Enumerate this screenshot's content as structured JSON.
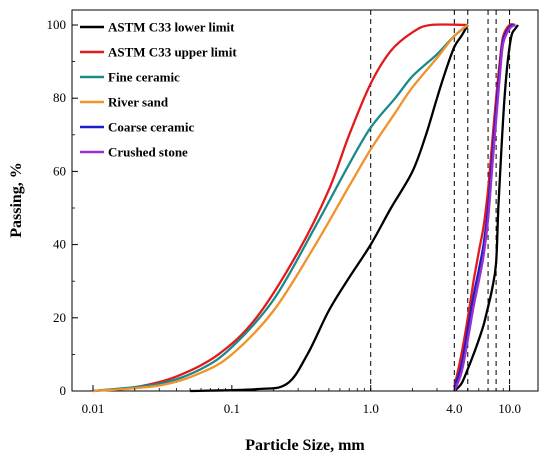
{
  "chart_data": {
    "type": "line",
    "xlabel": "Particle Size, mm",
    "ylabel": "Passing, %",
    "x_scale": "log",
    "ylim": [
      0,
      100
    ],
    "x_ticks": [
      "0.01",
      "0.1",
      "1.0",
      "4.0",
      "10.0"
    ],
    "y_ticks": [
      "0",
      "20",
      "40",
      "60",
      "80",
      "100"
    ],
    "grid": false,
    "legend_position": "top-left",
    "reference_lines_x": [
      "1.0",
      "4.0",
      "5.0",
      "7",
      "8",
      "10"
    ],
    "series": [
      {
        "name": "ASTM C33 lower limit",
        "color": "#000000",
        "curves": [
          [
            [
              0.05,
              0
            ],
            [
              0.15,
              0.5
            ],
            [
              0.25,
              2
            ],
            [
              0.35,
              10
            ],
            [
              0.5,
              22
            ],
            [
              0.7,
              31
            ],
            [
              1.0,
              40
            ],
            [
              1.4,
              50
            ],
            [
              2.0,
              60
            ],
            [
              2.5,
              70
            ],
            [
              3.0,
              80
            ],
            [
              3.5,
              88
            ],
            [
              4.0,
              94
            ],
            [
              4.5,
              97
            ],
            [
              5.0,
              100
            ]
          ],
          [
            [
              4.0,
              0
            ],
            [
              4.5,
              2
            ],
            [
              5.0,
              6
            ],
            [
              5.5,
              10
            ],
            [
              6.0,
              14
            ],
            [
              6.5,
              18
            ],
            [
              7.0,
              23
            ],
            [
              7.5,
              28
            ],
            [
              8.0,
              35
            ],
            [
              8.3,
              50
            ],
            [
              8.7,
              65
            ],
            [
              9.2,
              80
            ],
            [
              9.7,
              90
            ],
            [
              10.3,
              97
            ],
            [
              11.0,
              99
            ],
            [
              11.5,
              100
            ]
          ]
        ]
      },
      {
        "name": "ASTM C33 upper limit",
        "color": "#e31a1c",
        "curves": [
          [
            [
              0.01,
              0
            ],
            [
              0.02,
              1
            ],
            [
              0.04,
              4
            ],
            [
              0.08,
              10
            ],
            [
              0.15,
              20
            ],
            [
              0.3,
              38
            ],
            [
              0.5,
              55
            ],
            [
              0.7,
              70
            ],
            [
              1.0,
              84
            ],
            [
              1.4,
              93
            ],
            [
              2.0,
              98
            ],
            [
              2.7,
              100
            ],
            [
              5.0,
              100
            ]
          ],
          [
            [
              4.0,
              1
            ],
            [
              4.5,
              10
            ],
            [
              5.0,
              20
            ],
            [
              5.5,
              30
            ],
            [
              6.0,
              38
            ],
            [
              6.5,
              45
            ],
            [
              7.0,
              55
            ],
            [
              7.5,
              68
            ],
            [
              8.0,
              80
            ],
            [
              8.5,
              90
            ],
            [
              9.0,
              97
            ],
            [
              10.0,
              100
            ],
            [
              11.0,
              100
            ]
          ]
        ]
      },
      {
        "name": "Fine ceramic",
        "color": "#1a8a8a",
        "curves": [
          [
            [
              0.01,
              0
            ],
            [
              0.03,
              2
            ],
            [
              0.06,
              6
            ],
            [
              0.1,
              12
            ],
            [
              0.2,
              25
            ],
            [
              0.4,
              45
            ],
            [
              0.7,
              62
            ],
            [
              1.0,
              72
            ],
            [
              1.5,
              80
            ],
            [
              2.0,
              86
            ],
            [
              3.0,
              92
            ],
            [
              4.0,
              97
            ],
            [
              5.0,
              100
            ]
          ]
        ]
      },
      {
        "name": "River sand",
        "color": "#f0932b",
        "curves": [
          [
            [
              0.01,
              0
            ],
            [
              0.03,
              1.5
            ],
            [
              0.06,
              5
            ],
            [
              0.1,
              10
            ],
            [
              0.2,
              22
            ],
            [
              0.4,
              40
            ],
            [
              0.7,
              56
            ],
            [
              1.0,
              66
            ],
            [
              1.5,
              76
            ],
            [
              2.0,
              83
            ],
            [
              3.0,
              91
            ],
            [
              4.0,
              97
            ],
            [
              5.0,
              100
            ]
          ]
        ]
      },
      {
        "name": "Coarse ceramic",
        "color": "#1c1cc8",
        "curves": [
          [
            [
              4.0,
              1
            ],
            [
              4.5,
              7
            ],
            [
              5.0,
              17
            ],
            [
              5.5,
              26
            ],
            [
              6.0,
              33
            ],
            [
              6.5,
              40
            ],
            [
              7.0,
              50
            ],
            [
              7.5,
              64
            ],
            [
              8.0,
              77
            ],
            [
              8.5,
              88
            ],
            [
              9.0,
              96
            ],
            [
              10.0,
              99.5
            ],
            [
              11.0,
              100
            ]
          ]
        ]
      },
      {
        "name": "Crushed stone",
        "color": "#9b30d0",
        "curves": [
          [
            [
              4.0,
              0
            ],
            [
              4.5,
              5
            ],
            [
              5.0,
              14
            ],
            [
              5.5,
              23
            ],
            [
              6.0,
              30
            ],
            [
              6.5,
              37
            ],
            [
              7.0,
              47
            ],
            [
              7.5,
              61
            ],
            [
              8.0,
              74
            ],
            [
              8.5,
              86
            ],
            [
              9.0,
              95
            ],
            [
              10.0,
              99
            ],
            [
              11.0,
              100
            ]
          ]
        ]
      }
    ]
  }
}
